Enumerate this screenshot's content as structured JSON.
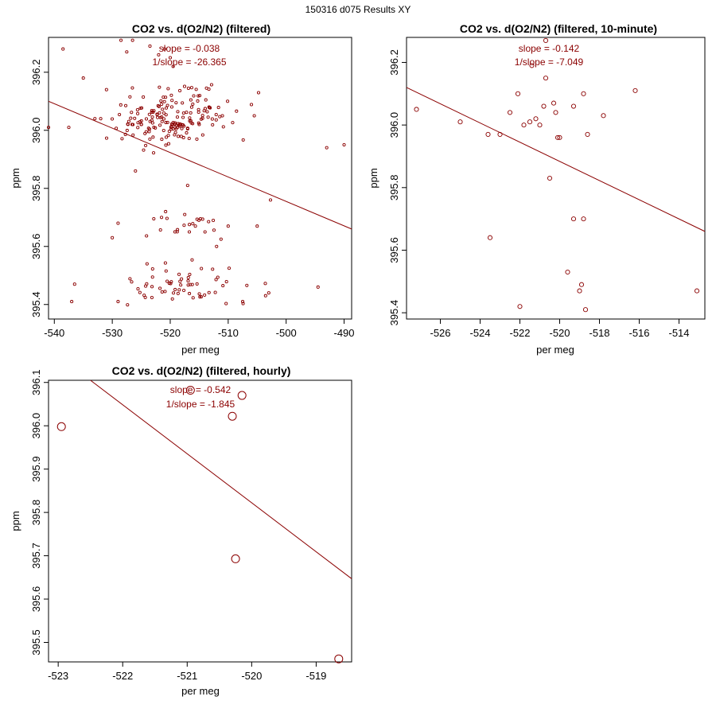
{
  "page_title": "150316   d075   Results XY",
  "colors": {
    "series": "#8b0000",
    "axis": "#000000",
    "background": "#ffffff"
  },
  "chart_data": [
    {
      "type": "scatter",
      "id": "all",
      "title": "CO2 vs. d(O2/N2) (filtered)",
      "xlabel": "per meg",
      "ylabel": "ppm",
      "xlim": [
        -541,
        -488.7
      ],
      "ylim": [
        395.35,
        396.32
      ],
      "xticks": [
        -540,
        -530,
        -520,
        -510,
        -500,
        -490
      ],
      "xtick_labels": [
        "-540",
        "-530",
        "-520",
        "-510",
        "-500",
        "-490"
      ],
      "yticks": [
        395.4,
        395.6,
        395.8,
        396.0,
        396.2
      ],
      "ytick_labels": [
        "395.4",
        "395.6",
        "395.8",
        "396.0",
        "396.2"
      ],
      "annotations": [
        "slope = -0.038",
        "1/slope = -26.365"
      ],
      "fit_line": {
        "x": [
          -541,
          -488.7
        ],
        "y": [
          396.1,
          395.66
        ]
      },
      "point_size": "small",
      "generated_cloud": {
        "seed": 7,
        "clusters": [
          {
            "n": 120,
            "xmean": -520.5,
            "xsd": 4.2,
            "ymean": 396.02,
            "ysd": 0.035
          },
          {
            "n": 55,
            "xmean": -519,
            "xsd": 5.5,
            "ymean": 396.09,
            "ysd": 0.04
          },
          {
            "n": 20,
            "xmean": -517,
            "xsd": 4,
            "ymean": 395.68,
            "ysd": 0.025
          },
          {
            "n": 60,
            "xmean": -519,
            "xsd": 5,
            "ymean": 395.46,
            "ysd": 0.04
          }
        ]
      },
      "x": [
        -538.5,
        -528.5,
        -527.5,
        -526.5,
        -523.5,
        -522,
        -521,
        -520,
        -519.5,
        -533,
        -532,
        -525,
        -517,
        -515,
        -511,
        -505.5,
        -502.7,
        -493,
        -490,
        -541,
        -537,
        -536.5,
        -535,
        -530,
        -529,
        -521.5,
        -520.8,
        -517.5,
        -514,
        -512,
        -510,
        -507.5,
        -505,
        -503,
        -494.5,
        -537.5,
        -531,
        -526,
        -529,
        -524
      ],
      "y": [
        396.28,
        396.31,
        396.27,
        396.31,
        396.29,
        396.26,
        396.28,
        396.25,
        396.22,
        396.04,
        396.04,
        396.02,
        395.81,
        396.02,
        396.05,
        396.05,
        395.76,
        395.94,
        395.95,
        396.01,
        395.41,
        395.47,
        396.18,
        395.63,
        395.68,
        395.7,
        395.72,
        395.71,
        395.65,
        395.6,
        395.67,
        395.41,
        395.67,
        395.44,
        395.46,
        396.01,
        396.14,
        395.86,
        395.41,
        395.54
      ]
    },
    {
      "type": "scatter",
      "id": "ten_minute",
      "title": "CO2 vs. d(O2/N2) (filtered, 10-minute)",
      "xlabel": "per meg",
      "ylabel": "ppm",
      "xlim": [
        -527.7,
        -512.7
      ],
      "ylim": [
        395.38,
        396.28
      ],
      "xticks": [
        -526,
        -524,
        -522,
        -520,
        -518,
        -516,
        -514
      ],
      "xtick_labels": [
        "-526",
        "-524",
        "-522",
        "-520",
        "-518",
        "-516",
        "-514"
      ],
      "yticks": [
        395.4,
        395.6,
        395.8,
        396.0,
        396.2
      ],
      "ytick_labels": [
        "395.4",
        "395.6",
        "395.8",
        "396.0",
        "396.2"
      ],
      "annotations": [
        "slope = -0.142",
        "1/slope = -7.049"
      ],
      "fit_line": {
        "x": [
          -527.7,
          -512.7
        ],
        "y": [
          396.12,
          395.66
        ]
      },
      "point_size": "medium",
      "x": [
        -527.2,
        -525,
        -523.6,
        -523,
        -522.5,
        -522.1,
        -521.8,
        -521.5,
        -521.2,
        -521,
        -520.8,
        -520.7,
        -520.5,
        -520.3,
        -520.2,
        -520.1,
        -520,
        -519.3,
        -518.8,
        -518.6,
        -517.8,
        -516.2,
        -520.7,
        -521.4,
        -523.5,
        -519.6,
        -519.3,
        -518.8,
        -519,
        -518.9,
        -522,
        -518.7,
        -513.1
      ],
      "y": [
        396.05,
        396.01,
        395.97,
        395.97,
        396.04,
        396.1,
        396,
        396.01,
        396.02,
        396.0,
        396.06,
        396.15,
        395.83,
        396.07,
        396.04,
        395.96,
        395.96,
        396.06,
        396.1,
        395.97,
        396.03,
        396.11,
        396.27,
        396.19,
        395.64,
        395.53,
        395.7,
        395.7,
        395.47,
        395.49,
        395.42,
        395.41,
        395.47
      ]
    },
    {
      "type": "scatter",
      "id": "hourly",
      "title": "CO2 vs. d(O2/N2) (filtered, hourly)",
      "xlabel": "per meg",
      "ylabel": "ppm",
      "xlim": [
        -523.15,
        -518.45
      ],
      "ylim": [
        395.455,
        396.105
      ],
      "xticks": [
        -523,
        -522,
        -521,
        -520,
        -519
      ],
      "xtick_labels": [
        "-523",
        "-522",
        "-521",
        "-520",
        "-519"
      ],
      "yticks": [
        395.5,
        395.6,
        395.7,
        395.8,
        395.9,
        396.0,
        396.1
      ],
      "ytick_labels": [
        "395.5",
        "395.6",
        "395.7",
        "395.8",
        "395.9",
        "396.0",
        "396.1"
      ],
      "annotations": [
        "slope = -0.542",
        "1/slope = -1.845"
      ],
      "fit_line": {
        "x": [
          -522.5,
          -518.45
        ],
        "y": [
          396.105,
          395.647
        ]
      },
      "point_size": "large",
      "x": [
        -522.95,
        -520.95,
        -520.3,
        -520.15,
        -520.25,
        -518.65
      ],
      "y": [
        395.998,
        396.082,
        396.022,
        396.07,
        395.693,
        395.462
      ]
    }
  ]
}
